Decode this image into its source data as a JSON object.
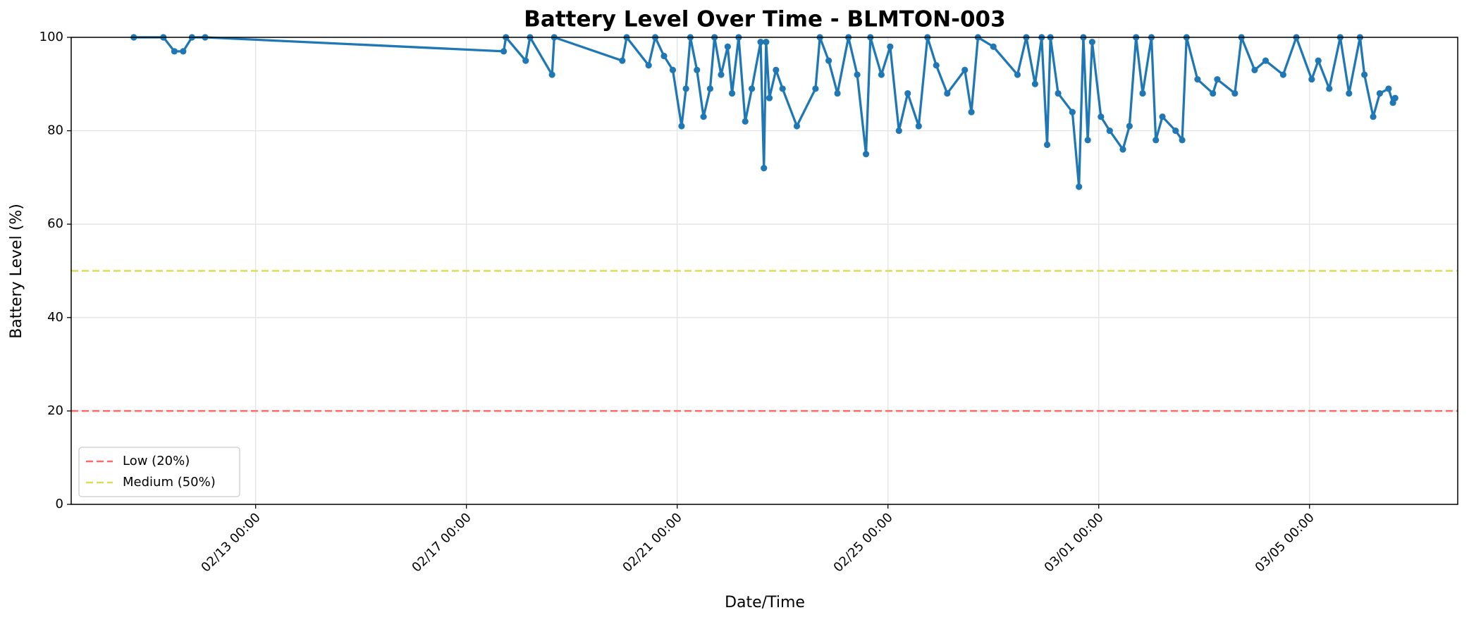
{
  "chart_data": {
    "type": "line",
    "title": "Battery Level Over Time - BLMTON-003",
    "xlabel": "Date/Time",
    "ylabel": "Battery Level (%)",
    "x": [
      "02/10 16:30",
      "02/11 06:00",
      "02/11 11:00",
      "02/11 15:00",
      "02/11 19:00",
      "02/12 01:00",
      "02/17 17:00",
      "02/17 18:00",
      "02/18 03:00",
      "02/18 05:00",
      "02/18 15:00",
      "02/18 16:00",
      "02/19 23:00",
      "02/20 01:00",
      "02/20 11:00",
      "02/20 14:00",
      "02/20 18:00",
      "02/20 22:00",
      "02/21 02:00",
      "02/21 04:00",
      "02/21 06:00",
      "02/21 09:00",
      "02/21 12:00",
      "02/21 15:00",
      "02/21 17:00",
      "02/21 20:00",
      "02/21 23:00",
      "02/22 01:00",
      "02/22 04:00",
      "02/22 07:00",
      "02/22 10:00",
      "02/22 14:00",
      "02/22 15:30",
      "02/22 16:30",
      "02/22 18:00",
      "02/22 21:00",
      "02/23 00:00",
      "02/23 06:30",
      "02/23 15:00",
      "02/23 17:00",
      "02/23 21:00",
      "02/24 01:00",
      "02/24 06:00",
      "02/24 10:00",
      "02/24 14:00",
      "02/24 16:00",
      "02/24 21:00",
      "02/25 01:00",
      "02/25 05:00",
      "02/25 09:00",
      "02/25 14:00",
      "02/25 18:00",
      "02/25 22:00",
      "02/26 03:00",
      "02/26 11:00",
      "02/26 14:00",
      "02/26 17:00",
      "02/27 00:00",
      "02/27 11:00",
      "02/27 15:00",
      "02/27 19:00",
      "02/27 22:00",
      "02/28 00:30",
      "02/28 02:00",
      "02/28 05:30",
      "02/28 12:00",
      "02/28 15:00",
      "02/28 17:00",
      "02/28 19:00",
      "02/28 21:00",
      "03/01 01:00",
      "03/01 05:00",
      "03/01 11:00",
      "03/01 14:00",
      "03/01 17:00",
      "03/01 20:00",
      "03/02 00:00",
      "03/02 02:00",
      "03/02 05:00",
      "03/02 11:00",
      "03/02 14:00",
      "03/02 16:00",
      "03/02 21:00",
      "03/03 04:00",
      "03/03 06:00",
      "03/03 14:00",
      "03/03 17:00",
      "03/03 23:00",
      "03/04 04:00",
      "03/04 12:00",
      "03/04 18:00",
      "03/05 01:00",
      "03/05 04:00",
      "03/05 09:00",
      "03/05 14:00",
      "03/05 18:00",
      "03/05 23:00",
      "03/06 01:00",
      "03/06 05:00",
      "03/06 08:00",
      "03/06 12:00",
      "03/06 14:00",
      "03/06 15:00"
    ],
    "series": [
      {
        "name": "Battery Level",
        "color": "#1f77b4",
        "values": [
          100,
          100,
          97,
          97,
          100,
          100,
          97,
          100,
          95,
          100,
          92,
          100,
          95,
          100,
          94,
          100,
          96,
          93,
          81,
          89,
          100,
          93,
          83,
          89,
          100,
          92,
          98,
          88,
          100,
          82,
          89,
          99,
          72,
          99,
          87,
          93,
          89,
          81,
          89,
          100,
          95,
          88,
          100,
          92,
          75,
          100,
          92,
          98,
          80,
          88,
          81,
          100,
          94,
          88,
          93,
          84,
          100,
          98,
          92,
          100,
          90,
          100,
          77,
          100,
          88,
          84,
          68,
          100,
          78,
          99,
          83,
          80,
          76,
          81,
          100,
          88,
          100,
          78,
          83,
          80,
          78,
          100,
          91,
          88,
          91,
          88,
          100,
          93,
          95,
          92,
          100,
          91,
          95,
          89,
          100,
          88,
          100,
          92,
          83,
          88,
          89,
          86,
          87
        ]
      }
    ],
    "reference_lines": [
      {
        "name": "Low (20%)",
        "value": 20,
        "color": "#ff6b6b"
      },
      {
        "name": "Medium (50%)",
        "value": 50,
        "color": "#dddd55"
      }
    ],
    "xlim": [
      "02/09 12:00",
      "03/07 19:30"
    ],
    "xticks": [
      "02/13 00:00",
      "02/17 00:00",
      "02/21 00:00",
      "02/25 00:00",
      "03/01 00:00",
      "03/05 00:00"
    ],
    "ylim": [
      0,
      100
    ],
    "yticks": [
      0,
      20,
      40,
      60,
      80,
      100
    ],
    "grid": true,
    "legend": "lower left"
  }
}
